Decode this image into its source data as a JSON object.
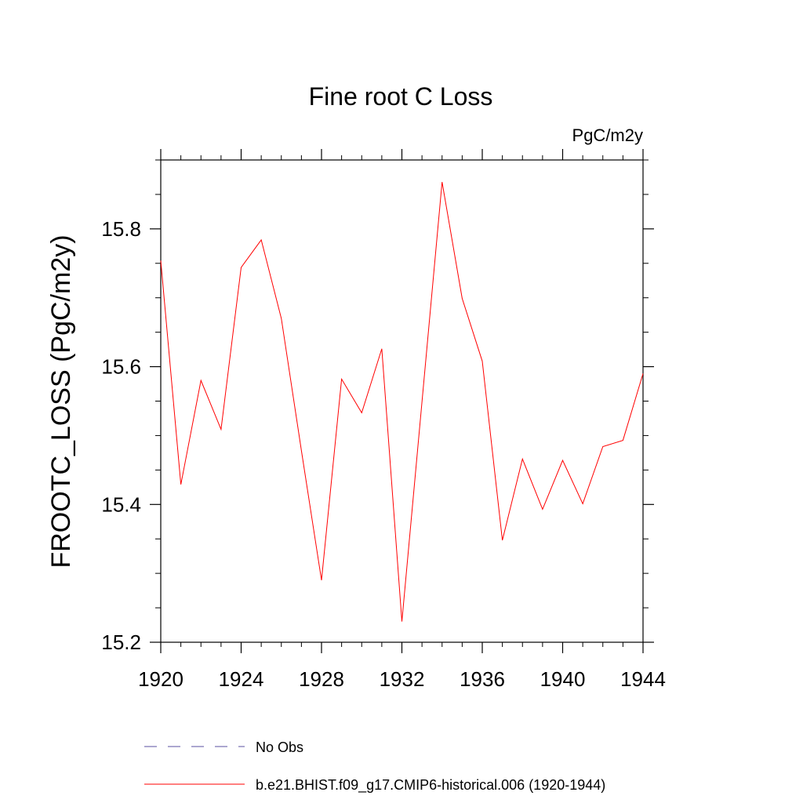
{
  "chart_data": {
    "type": "line",
    "title": "Fine root C Loss",
    "units_label": "PgC/m2y",
    "ylabel": "FROOTC_LOSS  (PgC/m2y)",
    "xlabel": "",
    "xlim": [
      1920,
      1944
    ],
    "ylim": [
      15.2,
      15.9
    ],
    "x_ticks": [
      1920,
      1924,
      1928,
      1932,
      1936,
      1940,
      1944
    ],
    "x_tick_labels": [
      "1920",
      "1924",
      "1928",
      "1932",
      "1936",
      "1940",
      "1944"
    ],
    "y_ticks": [
      15.2,
      15.4,
      15.6,
      15.8
    ],
    "y_tick_labels": [
      "15.2",
      "15.4",
      "15.6",
      "15.8"
    ],
    "grid": false,
    "legend_position": "bottom",
    "series": [
      {
        "name": "b.e21.BHIST.f09_g17.CMIP6-historical.006 (1920-1944)",
        "color": "#ff0000",
        "style": "solid",
        "x": [
          1920,
          1921,
          1922,
          1923,
          1924,
          1925,
          1926,
          1927,
          1928,
          1929,
          1930,
          1931,
          1932,
          1933,
          1934,
          1935,
          1936,
          1937,
          1938,
          1939,
          1940,
          1941,
          1942,
          1943,
          1944
        ],
        "values": [
          15.754,
          15.429,
          15.58,
          15.509,
          15.744,
          15.784,
          15.67,
          15.478,
          15.29,
          15.582,
          15.533,
          15.626,
          15.23,
          15.549,
          15.868,
          15.699,
          15.608,
          15.348,
          15.466,
          15.393,
          15.464,
          15.401,
          15.484,
          15.493,
          15.59
        ]
      }
    ],
    "legend": [
      {
        "label": "No Obs",
        "color": "#5a4fa0",
        "style": "dashed"
      },
      {
        "label": "b.e21.BHIST.f09_g17.CMIP6-historical.006 (1920-1944)",
        "color": "#ff0000",
        "style": "solid"
      }
    ]
  }
}
